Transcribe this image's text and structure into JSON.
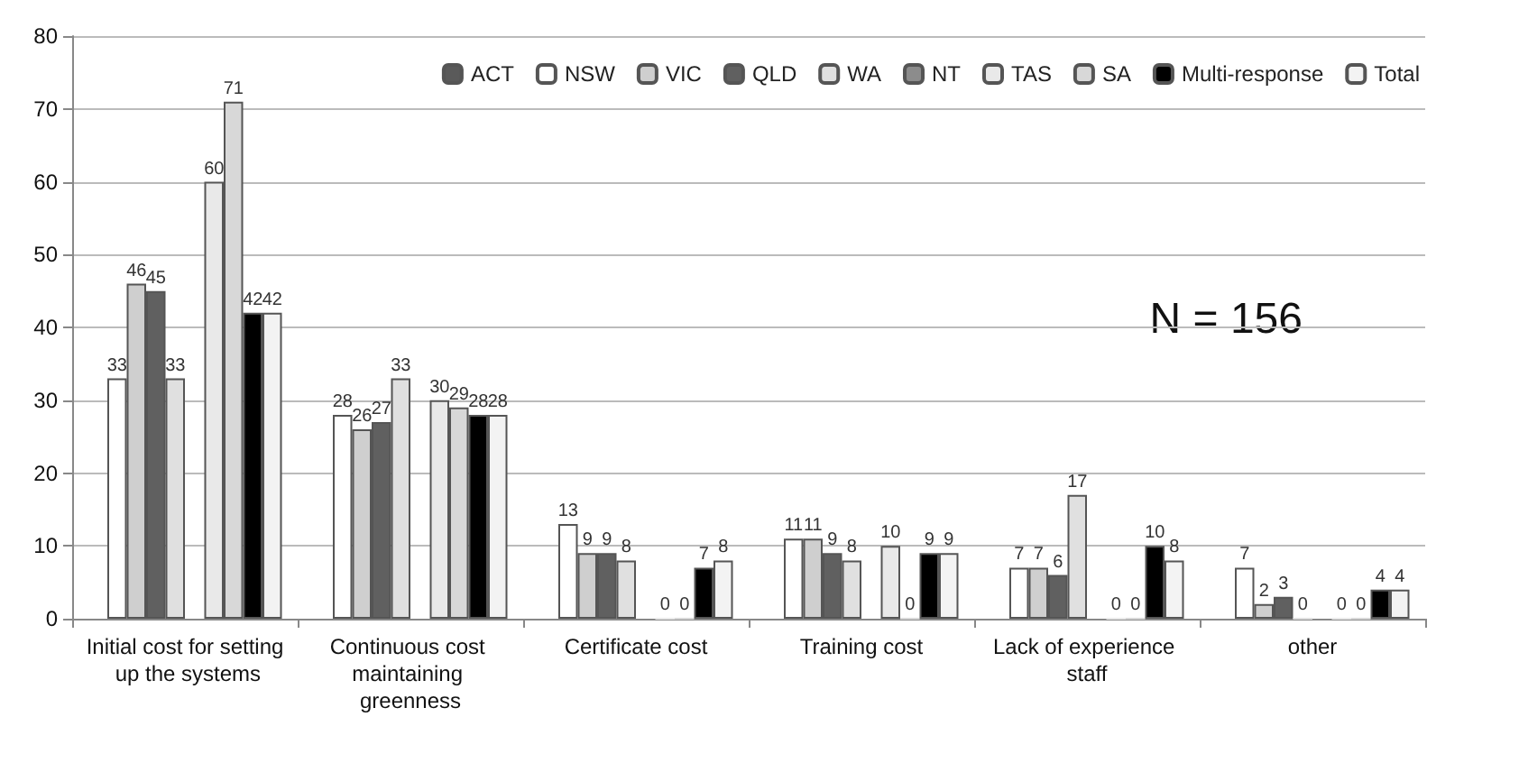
{
  "chart_data": {
    "type": "bar",
    "categories": [
      "Initial cost for setting up the systems",
      "Continuous cost maintaining greenness",
      "Certificate cost",
      "Training cost",
      "Lack of experience staff",
      "other"
    ],
    "series": [
      {
        "name": "ACT",
        "color": "#5a5a5a",
        "values": [
          null,
          null,
          null,
          null,
          null,
          null
        ]
      },
      {
        "name": "NSW",
        "color": "#ffffff",
        "values": [
          33,
          28,
          13,
          11,
          7,
          7
        ]
      },
      {
        "name": "VIC",
        "color": "#cfcfcf",
        "values": [
          46,
          26,
          9,
          11,
          7,
          2
        ]
      },
      {
        "name": "QLD",
        "color": "#606060",
        "values": [
          45,
          27,
          9,
          9,
          6,
          3
        ]
      },
      {
        "name": "WA",
        "color": "#e0e0e0",
        "values": [
          33,
          33,
          8,
          8,
          17,
          0
        ]
      },
      {
        "name": "NT",
        "color": "#8c8c8c",
        "values": [
          null,
          null,
          null,
          null,
          null,
          null
        ]
      },
      {
        "name": "TAS",
        "color": "#e9e9e9",
        "values": [
          60,
          30,
          0,
          10,
          0,
          0
        ]
      },
      {
        "name": "SA",
        "color": "#d8d8d8",
        "values": [
          71,
          29,
          0,
          0,
          0,
          0
        ]
      },
      {
        "name": "Multi-response",
        "color": "#000000",
        "values": [
          42,
          28,
          7,
          9,
          10,
          4
        ]
      },
      {
        "name": "Total",
        "color": "#f3f3f3",
        "values": [
          42,
          28,
          8,
          9,
          8,
          4
        ]
      }
    ],
    "ylim": [
      0,
      80
    ],
    "yticks": [
      0,
      10,
      20,
      30,
      40,
      50,
      60,
      70,
      80
    ],
    "grid": "y",
    "legend": "top right",
    "data_labels": true,
    "annotations": [
      "N = 156"
    ]
  }
}
